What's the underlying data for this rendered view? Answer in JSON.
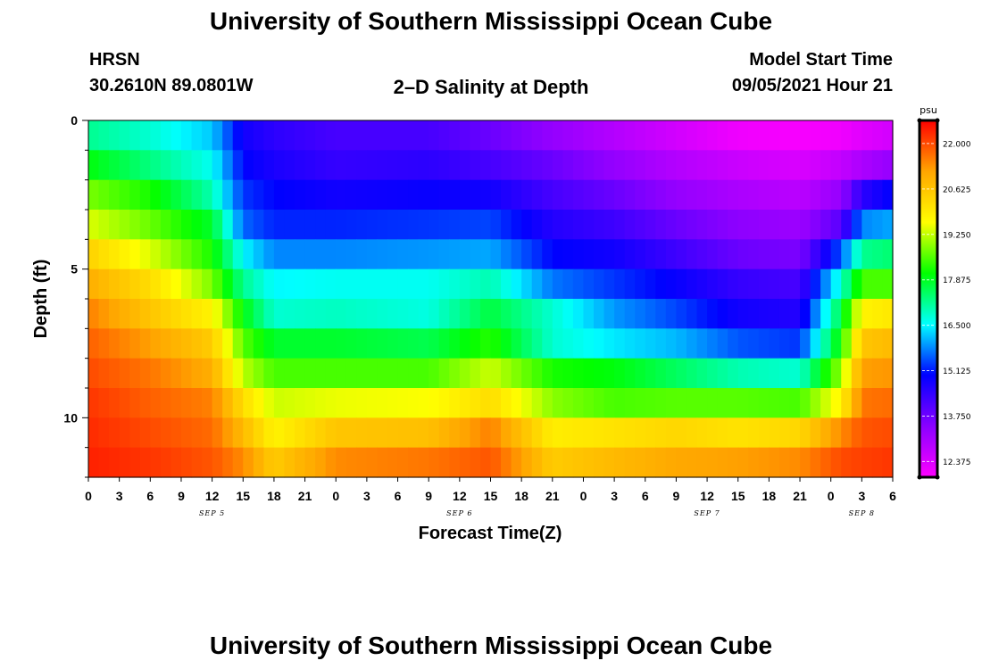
{
  "header": {
    "title": "University of Southern Mississippi Ocean Cube",
    "station": "HRSN",
    "coords": "30.2610N  89.0801W",
    "plot_title": "2–D Salinity at Depth",
    "model_label": "Model Start Time",
    "model_time": "09/05/2021 Hour 21"
  },
  "footer": {
    "title": "University of Southern Mississippi Ocean Cube"
  },
  "chart_data": {
    "type": "heatmap",
    "xlabel": "Forecast Time(Z)",
    "ylabel": "Depth (ft)",
    "x_tick_labels": [
      "0",
      "3",
      "6",
      "9",
      "12",
      "15",
      "18",
      "21",
      "0",
      "3",
      "6",
      "9",
      "12",
      "15",
      "18",
      "21",
      "0",
      "3",
      "6",
      "9",
      "12",
      "15",
      "18",
      "21",
      "0",
      "3",
      "6"
    ],
    "date_labels": [
      {
        "label": "SEP 5",
        "tick_index": 4
      },
      {
        "label": "SEP 6",
        "tick_index": 12
      },
      {
        "label": "SEP 7",
        "tick_index": 20
      },
      {
        "label": "SEP 8",
        "tick_index": 25
      }
    ],
    "y_ticks": [
      0,
      5,
      10
    ],
    "y_range": [
      0,
      12
    ],
    "x_range_hours": [
      0,
      78
    ],
    "colorbar": {
      "unit": "psu",
      "tick_labels": [
        "22.000",
        "20.625",
        "19.250",
        "17.875",
        "16.500",
        "15.125",
        "13.750",
        "12.375"
      ],
      "min": 11.9,
      "max": 22.7,
      "colors": [
        "#ff00ff",
        "#8a00ff",
        "#0000ff",
        "#00ffff",
        "#00ff00",
        "#ffff00",
        "#ffa500",
        "#ff0000"
      ]
    },
    "depth_levels_ft": [
      0.5,
      1.5,
      2.5,
      3.5,
      4.5,
      5.5,
      6.5,
      7.5,
      8.5,
      9.5,
      10.5,
      11.5
    ],
    "time_knots_hours": [
      0,
      6,
      12,
      15,
      18,
      24,
      33,
      39,
      45,
      51,
      57,
      63,
      69,
      73,
      75,
      78
    ],
    "salinity_psu": [
      [
        17.2,
        16.8,
        16.2,
        14.8,
        14.5,
        14.2,
        14.2,
        13.8,
        13.3,
        12.9,
        12.5,
        12.1,
        12.0,
        12.1,
        12.3,
        12.5
      ],
      [
        18.0,
        17.3,
        16.6,
        15.0,
        14.7,
        14.4,
        14.5,
        14.2,
        13.8,
        13.3,
        12.9,
        12.6,
        12.4,
        12.7,
        13.0,
        13.3
      ],
      [
        18.8,
        18.2,
        17.0,
        15.3,
        15.0,
        14.8,
        14.9,
        14.8,
        14.2,
        13.8,
        13.3,
        13.0,
        12.8,
        13.3,
        14.5,
        15.0
      ],
      [
        19.4,
        18.7,
        17.8,
        15.6,
        15.2,
        15.2,
        15.3,
        15.4,
        14.6,
        14.3,
        13.8,
        13.4,
        13.2,
        14.0,
        15.8,
        16.0
      ],
      [
        20.4,
        19.4,
        18.2,
        16.5,
        15.8,
        15.8,
        15.9,
        16.0,
        15.0,
        14.8,
        14.3,
        13.8,
        13.6,
        15.5,
        17.2,
        17.4
      ],
      [
        21.0,
        20.2,
        18.8,
        17.2,
        16.5,
        16.6,
        16.6,
        17.0,
        15.7,
        15.3,
        14.9,
        14.4,
        14.2,
        16.8,
        18.5,
        18.5
      ],
      [
        21.5,
        20.6,
        19.8,
        18.0,
        16.8,
        16.9,
        16.7,
        17.7,
        16.8,
        15.9,
        15.4,
        14.8,
        14.6,
        17.7,
        19.8,
        20.0
      ],
      [
        21.8,
        21.2,
        20.5,
        18.6,
        17.8,
        17.8,
        17.6,
        18.3,
        16.8,
        16.4,
        16.1,
        15.5,
        15.3,
        18.2,
        20.6,
        20.8
      ],
      [
        22.0,
        21.6,
        21.0,
        19.2,
        18.5,
        18.5,
        18.5,
        19.3,
        18.2,
        18.0,
        17.5,
        17.0,
        16.8,
        19.0,
        21.2,
        21.3
      ],
      [
        22.2,
        21.8,
        21.5,
        20.2,
        19.3,
        19.5,
        19.6,
        20.2,
        18.9,
        18.5,
        18.6,
        18.6,
        18.5,
        19.8,
        21.6,
        21.7
      ],
      [
        22.3,
        22.0,
        21.7,
        20.8,
        19.8,
        20.6,
        20.7,
        21.5,
        19.9,
        20.1,
        20.3,
        20.1,
        20.3,
        21.4,
        21.9,
        22.0
      ],
      [
        22.4,
        22.2,
        21.9,
        21.4,
        20.5,
        21.4,
        21.6,
        21.9,
        20.5,
        20.8,
        21.1,
        21.2,
        21.4,
        22.0,
        22.1,
        22.2
      ]
    ]
  }
}
